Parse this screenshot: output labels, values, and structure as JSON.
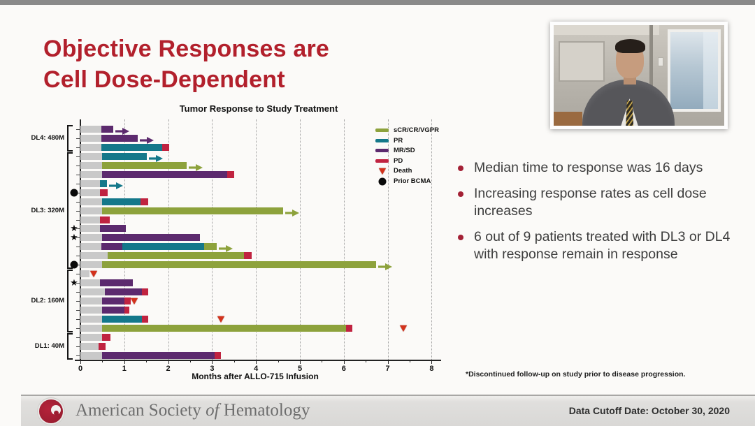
{
  "slide": {
    "title_line1": "Objective Responses are",
    "title_line2": "Cell Dose-Dependent"
  },
  "bullets": [
    "Median time to response was 16 days",
    "Increasing response rates as cell dose increases",
    "6 out of 9 patients treated with DL3 or DL4 with response remain in response"
  ],
  "footnote": "*Discontinued follow-up on study prior to disease progression.",
  "footer": {
    "org_prefix": "American Society ",
    "org_italic": "of",
    "org_suffix": " Hematology",
    "data_cutoff": "Data Cutoff Date: October 30, 2020"
  },
  "chart_data": {
    "type": "bar",
    "variant": "swimmer-plot",
    "title": "Tumor Response to Study Treatment",
    "xlabel": "Months after ALLO-715 Infusion",
    "xlim": [
      0,
      8
    ],
    "xticks": [
      0,
      1,
      2,
      3,
      4,
      5,
      6,
      7,
      8
    ],
    "grid": "vertical-dotted",
    "legend_position": "upper-right",
    "colors": {
      "pre": "#c9c9c9",
      "sCR/CR/VGPR": "#8da23c",
      "PR": "#14788a",
      "MR/SD": "#5c2a6e",
      "PD": "#c02340",
      "death": "#d3321c",
      "prior_bcma": "#0a0a0a",
      "accent_red": "#b2202c"
    },
    "legend": [
      {
        "label": "sCR/CR/VGPR",
        "marker": "swatch",
        "color": "#8da23c"
      },
      {
        "label": "PR",
        "marker": "swatch",
        "color": "#14788a"
      },
      {
        "label": "MR/SD",
        "marker": "swatch",
        "color": "#5c2a6e"
      },
      {
        "label": "PD",
        "marker": "swatch",
        "color": "#c02340"
      },
      {
        "label": "Death",
        "marker": "triangle",
        "color": "#d3321c"
      },
      {
        "label": "Prior BCMA",
        "marker": "circle",
        "color": "#0a0a0a"
      }
    ],
    "groups": [
      {
        "label": "DL4: 480M",
        "rows": [
          {
            "segments": [
              [
                "pre",
                0,
                0.47
              ],
              [
                "MR/SD",
                0.47,
                0.75
              ]
            ],
            "arrow": "MR/SD"
          },
          {
            "segments": [
              [
                "pre",
                0,
                0.47
              ],
              [
                "MR/SD",
                0.47,
                1.3
              ]
            ],
            "arrow": "MR/SD"
          },
          {
            "segments": [
              [
                "pre",
                0,
                0.47
              ],
              [
                "PR",
                0.47,
                1.86
              ],
              [
                "PD",
                1.86,
                2.03
              ]
            ]
          }
        ]
      },
      {
        "label": "DL3: 320M",
        "rows": [
          {
            "segments": [
              [
                "pre",
                0,
                0.5
              ],
              [
                "PR",
                0.5,
                1.52
              ]
            ],
            "arrow": "PR"
          },
          {
            "segments": [
              [
                "pre",
                0,
                0.5
              ],
              [
                "sCR/CR/VGPR",
                0.5,
                2.42
              ]
            ],
            "arrow": "sCR/CR/VGPR"
          },
          {
            "segments": [
              [
                "pre",
                0,
                0.5
              ],
              [
                "MR/SD",
                0.5,
                3.35
              ],
              [
                "PD",
                3.35,
                3.5
              ]
            ]
          },
          {
            "segments": [
              [
                "pre",
                0,
                0.45
              ],
              [
                "PR",
                0.45,
                0.6
              ]
            ],
            "arrow": "PR"
          },
          {
            "segments": [
              [
                "pre",
                0,
                0.45
              ],
              [
                "PD",
                0.45,
                0.62
              ]
            ],
            "prior_bcma": true
          },
          {
            "segments": [
              [
                "pre",
                0,
                0.5
              ],
              [
                "PR",
                0.5,
                1.37
              ],
              [
                "PD",
                1.37,
                1.54
              ]
            ]
          },
          {
            "segments": [
              [
                "pre",
                0,
                0.5
              ],
              [
                "sCR/CR/VGPR",
                0.5,
                4.62
              ]
            ],
            "arrow": "sCR/CR/VGPR"
          },
          {
            "segments": [
              [
                "pre",
                0,
                0.45
              ],
              [
                "PD",
                0.45,
                0.67
              ]
            ]
          },
          {
            "segments": [
              [
                "pre",
                0,
                0.45
              ],
              [
                "MR/SD",
                0.45,
                1.03
              ]
            ],
            "star": true
          },
          {
            "segments": [
              [
                "pre",
                0,
                0.5
              ],
              [
                "MR/SD",
                0.5,
                2.72
              ]
            ],
            "star": true
          },
          {
            "segments": [
              [
                "pre",
                0,
                0.48
              ],
              [
                "MR/SD",
                0.48,
                0.96
              ],
              [
                "PR",
                0.96,
                2.82
              ],
              [
                "sCR/CR/VGPR",
                2.82,
                3.1
              ]
            ],
            "arrow": "sCR/CR/VGPR"
          },
          {
            "segments": [
              [
                "pre",
                0,
                0.62
              ],
              [
                "sCR/CR/VGPR",
                0.62,
                3.73
              ],
              [
                "PD",
                3.73,
                3.9
              ]
            ]
          },
          {
            "segments": [
              [
                "pre",
                0,
                0.5
              ],
              [
                "sCR/CR/VGPR",
                0.5,
                6.73
              ]
            ],
            "arrow": "sCR/CR/VGPR",
            "prior_bcma": true
          }
        ]
      },
      {
        "label": "DL2: 160M",
        "rows": [
          {
            "segments": [
              [
                "pre",
                0,
                0.2
              ]
            ],
            "death_at": 0.3
          },
          {
            "segments": [
              [
                "pre",
                0,
                0.45
              ],
              [
                "MR/SD",
                0.45,
                1.2
              ]
            ],
            "star": true
          },
          {
            "segments": [
              [
                "pre",
                0,
                0.55
              ],
              [
                "MR/SD",
                0.55,
                1.4
              ],
              [
                "PD",
                1.4,
                1.55
              ]
            ]
          },
          {
            "segments": [
              [
                "pre",
                0,
                0.5
              ],
              [
                "MR/SD",
                0.5,
                1.0
              ],
              [
                "PD",
                1.0,
                1.15
              ]
            ],
            "death_at": 1.22
          },
          {
            "segments": [
              [
                "pre",
                0,
                0.5
              ],
              [
                "MR/SD",
                0.5,
                1.0
              ],
              [
                "PD",
                1.0,
                1.12
              ]
            ]
          },
          {
            "segments": [
              [
                "pre",
                0,
                0.5
              ],
              [
                "PR",
                0.5,
                1.4
              ],
              [
                "PD",
                1.4,
                1.55
              ]
            ],
            "death_at": 3.2
          },
          {
            "segments": [
              [
                "pre",
                0,
                0.5
              ],
              [
                "sCR/CR/VGPR",
                0.5,
                6.05
              ],
              [
                "PD",
                6.05,
                6.2
              ]
            ],
            "death_at": 7.35
          }
        ]
      },
      {
        "label": "DL1: 40M",
        "rows": [
          {
            "segments": [
              [
                "pre",
                0,
                0.5
              ],
              [
                "PD",
                0.5,
                0.68
              ]
            ]
          },
          {
            "segments": [
              [
                "pre",
                0,
                0.42
              ],
              [
                "PD",
                0.42,
                0.58
              ]
            ]
          },
          {
            "segments": [
              [
                "pre",
                0,
                0.5
              ],
              [
                "MR/SD",
                0.5,
                3.05
              ],
              [
                "PD",
                3.05,
                3.2
              ]
            ]
          }
        ]
      }
    ]
  }
}
